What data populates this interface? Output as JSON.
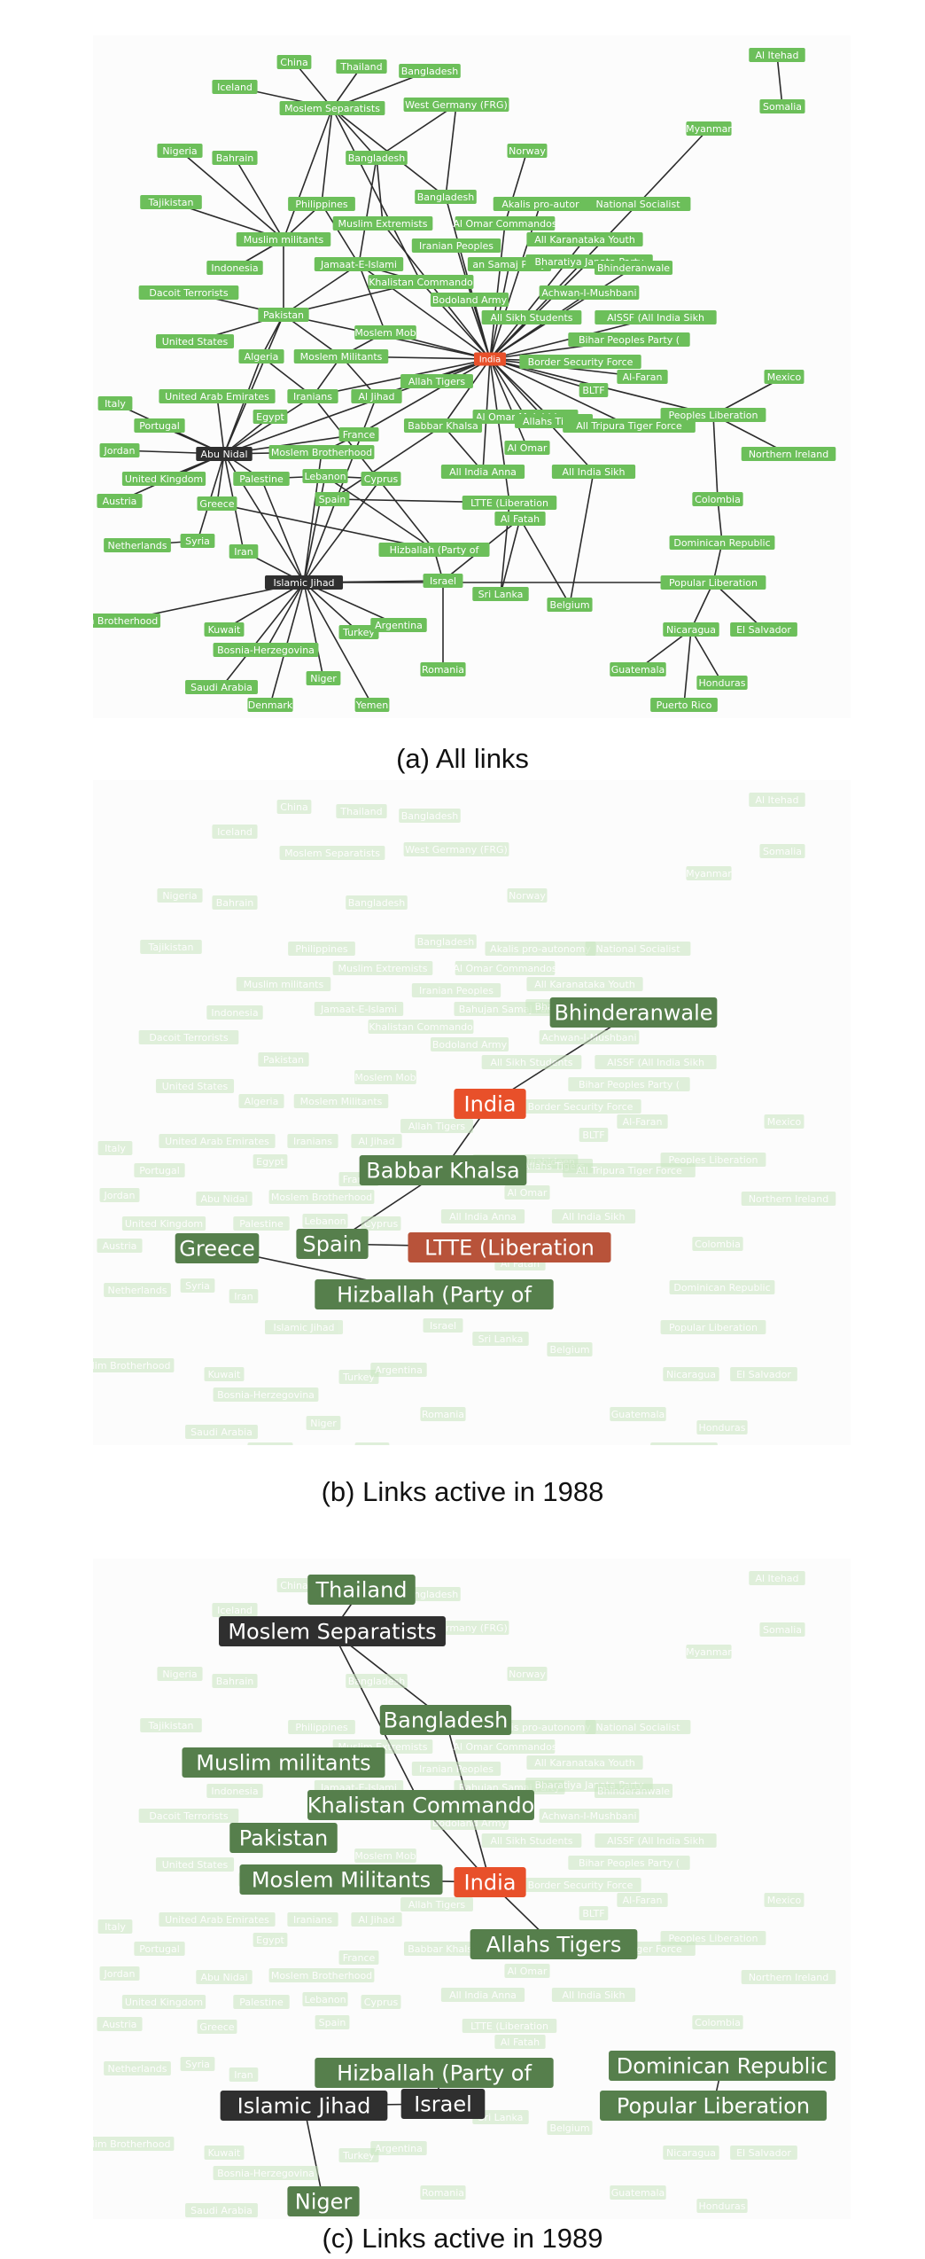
{
  "captions": [
    "(a) All links",
    "(b) Links active in 1988",
    "(c) Links active in 1989"
  ],
  "colors": {
    "node_green": "#6cbf5a",
    "node_highlight_green": "#567f4c",
    "node_dark": "#2f2f2f",
    "node_focus": "#e8502a",
    "node_focus_dark": "#b8533a",
    "edge": "#2b2b2b",
    "faded_node": "#c9e6bf",
    "faded_text": "#a7c79b"
  },
  "nodes": [
    {
      "id": "china",
      "label": "China"
    },
    {
      "id": "thailand",
      "label": "Thailand"
    },
    {
      "id": "bangladesh_top",
      "label": "Bangladesh"
    },
    {
      "id": "iceland",
      "label": "Iceland"
    },
    {
      "id": "moslem_sep",
      "label": "Moslem Separatists"
    },
    {
      "id": "west_germany",
      "label": "West Germany (FRG)"
    },
    {
      "id": "al_itehad",
      "label": "Al Itehad"
    },
    {
      "id": "somalia",
      "label": "Somalia"
    },
    {
      "id": "nigeria",
      "label": "Nigeria"
    },
    {
      "id": "bahrain",
      "label": "Bahrain"
    },
    {
      "id": "bangladesh_mid",
      "label": "Bangladesh"
    },
    {
      "id": "norway",
      "label": "Norway"
    },
    {
      "id": "myanmar",
      "label": "Myanmar"
    },
    {
      "id": "tajikistan",
      "label": "Tajikistan"
    },
    {
      "id": "philippines",
      "label": "Philippines"
    },
    {
      "id": "bangladesh_low",
      "label": "Bangladesh"
    },
    {
      "id": "akalis",
      "label": "Akalis pro-autonomy"
    },
    {
      "id": "national_soc",
      "label": "National Socialist"
    },
    {
      "id": "muslim_extremists",
      "label": "Muslim Extremists"
    },
    {
      "id": "al_omar_cmd",
      "label": "Al Omar Commandos"
    },
    {
      "id": "muslim_militants",
      "label": "Muslim militants"
    },
    {
      "id": "iranian_peoples",
      "label": "Iranian Peoples"
    },
    {
      "id": "al_karanataka",
      "label": "All Karanataka Youth"
    },
    {
      "id": "indonesia",
      "label": "Indonesia"
    },
    {
      "id": "jamaat",
      "label": "Jamaat-E-Islami"
    },
    {
      "id": "sama_party",
      "label": "Bahujan Samaj Party"
    },
    {
      "id": "bjp",
      "label": "Bharatiya Janata Party"
    },
    {
      "id": "bhinderanwale",
      "label": "Bhinderanwale"
    },
    {
      "id": "khalistan",
      "label": "Khalistan Commando"
    },
    {
      "id": "dacoit",
      "label": "Dacoit Terrorists"
    },
    {
      "id": "achwan",
      "label": "Achwan-I-Mushbani"
    },
    {
      "id": "bodoland",
      "label": "Bodoland Army"
    },
    {
      "id": "pakistan",
      "label": "Pakistan"
    },
    {
      "id": "sikh_students",
      "label": "All Sikh Students"
    },
    {
      "id": "aissf",
      "label": "AISSF (All India Sikh"
    },
    {
      "id": "moslem_mob",
      "label": "Moslem Mob"
    },
    {
      "id": "united_states",
      "label": "United States"
    },
    {
      "id": "bihar",
      "label": "Bihar Peoples Party ("
    },
    {
      "id": "algeria",
      "label": "Algeria"
    },
    {
      "id": "moslem_militants",
      "label": "Moslem Militants"
    },
    {
      "id": "india",
      "label": "India"
    },
    {
      "id": "bsf",
      "label": "Border Security Force"
    },
    {
      "id": "al_faran",
      "label": "Al-Faran"
    },
    {
      "id": "mexico",
      "label": "Mexico"
    },
    {
      "id": "allah_tigers",
      "label": "Allah Tigers"
    },
    {
      "id": "bltf",
      "label": "BLTF"
    },
    {
      "id": "uae",
      "label": "United Arab Emirates"
    },
    {
      "id": "iranians",
      "label": "Iranians"
    },
    {
      "id": "al_jihad",
      "label": "Al Jihad"
    },
    {
      "id": "italy",
      "label": "Italy"
    },
    {
      "id": "egypt",
      "label": "Egypt"
    },
    {
      "id": "al_omar_muj",
      "label": "Al Omar Mujahideen"
    },
    {
      "id": "allahs_tigers",
      "label": "Allahs Tigers"
    },
    {
      "id": "tripura",
      "label": "All Tripura Tiger Force"
    },
    {
      "id": "peoples_lib",
      "label": "Peoples Liberation"
    },
    {
      "id": "portugal",
      "label": "Portugal"
    },
    {
      "id": "france",
      "label": "France"
    },
    {
      "id": "babbar",
      "label": "Babbar Khalsa"
    },
    {
      "id": "jordan",
      "label": "Jordan"
    },
    {
      "id": "abu_nidal",
      "label": "Abu Nidal"
    },
    {
      "id": "moslem_brotherhood",
      "label": "Moslem Brotherhood"
    },
    {
      "id": "al_omar",
      "label": "Al Omar"
    },
    {
      "id": "northern_ireland",
      "label": "Northern Ireland"
    },
    {
      "id": "united_kingdom",
      "label": "United Kingdom"
    },
    {
      "id": "palestine",
      "label": "Palestine"
    },
    {
      "id": "lebanon",
      "label": "Lebanon"
    },
    {
      "id": "cyprus",
      "label": "Cyprus"
    },
    {
      "id": "all_india_anna",
      "label": "All India Anna"
    },
    {
      "id": "all_india_sikh",
      "label": "All India Sikh"
    },
    {
      "id": "austria",
      "label": "Austria"
    },
    {
      "id": "greece",
      "label": "Greece"
    },
    {
      "id": "spain",
      "label": "Spain"
    },
    {
      "id": "ltte",
      "label": "LTTE (Liberation"
    },
    {
      "id": "colombia",
      "label": "Colombia"
    },
    {
      "id": "al_fatah",
      "label": "Al Fatah"
    },
    {
      "id": "netherlands",
      "label": "Netherlands"
    },
    {
      "id": "syria",
      "label": "Syria"
    },
    {
      "id": "iran",
      "label": "Iran"
    },
    {
      "id": "hizballah",
      "label": "Hizballah (Party of"
    },
    {
      "id": "dominican",
      "label": "Dominican Republic"
    },
    {
      "id": "islamic_jihad",
      "label": "Islamic Jihad"
    },
    {
      "id": "israel",
      "label": "Israel"
    },
    {
      "id": "sri_lanka",
      "label": "Sri Lanka"
    },
    {
      "id": "belgium",
      "label": "Belgium"
    },
    {
      "id": "popular_lib",
      "label": "Popular Liberation"
    },
    {
      "id": "muslim_brotherhood",
      "label": "Muslim Brotherhood"
    },
    {
      "id": "kuwait",
      "label": "Kuwait"
    },
    {
      "id": "turkey",
      "label": "Turkey"
    },
    {
      "id": "argentina",
      "label": "Argentina"
    },
    {
      "id": "nicaragua",
      "label": "Nicaragua"
    },
    {
      "id": "el_salvador",
      "label": "El Salvador"
    },
    {
      "id": "bosnia",
      "label": "Bosnia-Herzegovina"
    },
    {
      "id": "romania",
      "label": "Romania"
    },
    {
      "id": "guatemala",
      "label": "Guatemala"
    },
    {
      "id": "honduras",
      "label": "Honduras"
    },
    {
      "id": "saudi_arabia",
      "label": "Saudi Arabia"
    },
    {
      "id": "niger",
      "label": "Niger"
    },
    {
      "id": "denmark",
      "label": "Denmark"
    },
    {
      "id": "yemen",
      "label": "Yemen"
    },
    {
      "id": "puerto_rico",
      "label": "Puerto Rico"
    }
  ],
  "panel_b": {
    "focus": [
      "india",
      "ltte"
    ],
    "highlight": [
      "bhinderanwale",
      "babbar",
      "spain",
      "greece",
      "hizballah"
    ],
    "dark": [],
    "edges": [
      [
        "india",
        "bhinderanwale"
      ],
      [
        "india",
        "babbar"
      ],
      [
        "babbar",
        "spain"
      ],
      [
        "spain",
        "ltte"
      ],
      [
        "greece",
        "hizballah"
      ]
    ]
  },
  "panel_c": {
    "focus": [
      "india"
    ],
    "highlight": [
      "thailand",
      "bangladesh_low",
      "muslim_militants",
      "khalistan",
      "pakistan",
      "moslem_militants",
      "allahs_tigers",
      "hizballah",
      "dominican",
      "popular_lib",
      "niger"
    ],
    "dark": [
      "moslem_sep",
      "islamic_jihad",
      "israel"
    ],
    "edges": [
      [
        "thailand",
        "moslem_sep"
      ],
      [
        "moslem_sep",
        "bangladesh_low"
      ],
      [
        "moslem_sep",
        "khalistan"
      ],
      [
        "bangladesh_low",
        "india"
      ],
      [
        "khalistan",
        "india"
      ],
      [
        "moslem_militants",
        "india"
      ],
      [
        "india",
        "allahs_tigers"
      ],
      [
        "islamic_jihad",
        "israel"
      ],
      [
        "islamic_jihad",
        "niger"
      ],
      [
        "hizballah",
        "israel"
      ],
      [
        "dominican",
        "popular_lib"
      ]
    ]
  }
}
